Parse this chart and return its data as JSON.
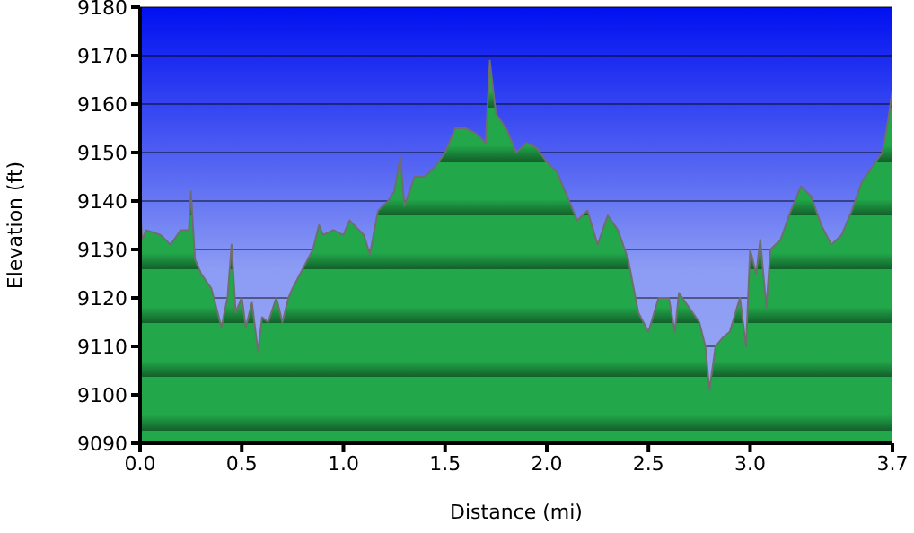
{
  "chart_data": {
    "type": "area",
    "xlabel": "Distance   (mi)",
    "ylabel": "Elevation (ft)",
    "x": [
      0.0,
      0.01,
      0.03,
      0.1,
      0.15,
      0.2,
      0.24,
      0.25,
      0.27,
      0.3,
      0.35,
      0.4,
      0.43,
      0.45,
      0.47,
      0.5,
      0.52,
      0.55,
      0.58,
      0.6,
      0.63,
      0.67,
      0.7,
      0.73,
      0.75,
      0.8,
      0.85,
      0.88,
      0.9,
      0.95,
      1.0,
      1.03,
      1.1,
      1.13,
      1.17,
      1.22,
      1.25,
      1.28,
      1.3,
      1.35,
      1.4,
      1.45,
      1.5,
      1.55,
      1.6,
      1.65,
      1.7,
      1.72,
      1.75,
      1.8,
      1.85,
      1.9,
      1.95,
      2.0,
      2.05,
      2.1,
      2.15,
      2.2,
      2.25,
      2.3,
      2.35,
      2.4,
      2.45,
      2.5,
      2.55,
      2.6,
      2.63,
      2.65,
      2.7,
      2.75,
      2.78,
      2.8,
      2.83,
      2.87,
      2.9,
      2.95,
      2.98,
      3.0,
      3.03,
      3.05,
      3.08,
      3.1,
      3.15,
      3.2,
      3.25,
      3.3,
      3.35,
      3.4,
      3.45,
      3.5,
      3.55,
      3.6,
      3.65,
      3.68,
      3.7
    ],
    "series": [
      {
        "color": "#22a84a",
        "values": [
          9139,
          9132,
          9134,
          9133,
          9131,
          9134,
          9134,
          9142,
          9128,
          9125,
          9122,
          9114,
          9120,
          9131,
          9117,
          9120,
          9114,
          9119,
          9109,
          9116,
          9115,
          9120,
          9115,
          9120,
          9122,
          9126,
          9130,
          9135,
          9133,
          9134,
          9133,
          9136,
          9133,
          9129,
          9138,
          9140,
          9142,
          9149,
          9139,
          9145,
          9145,
          9147,
          9150,
          9155,
          9155,
          9154,
          9152,
          9169,
          9158,
          9155,
          9150,
          9152,
          9151,
          9148,
          9146,
          9141,
          9136,
          9138,
          9131,
          9137,
          9134,
          9128,
          9117,
          9113,
          9120,
          9120,
          9113,
          9121,
          9118,
          9115,
          9110,
          9101,
          9110,
          9112,
          9113,
          9120,
          9110,
          9130,
          9125,
          9132,
          9118,
          9130,
          9132,
          9138,
          9143,
          9141,
          9135,
          9131,
          9133,
          9138,
          9144,
          9147,
          9150,
          9157,
          9163
        ]
      }
    ],
    "xlim": [
      0,
      3.7
    ],
    "xticks": [
      {
        "value": 0,
        "label": "0.0"
      },
      {
        "value": 0.5,
        "label": "0.5"
      },
      {
        "value": 1,
        "label": "1.0"
      },
      {
        "value": 1.5,
        "label": "1.5"
      },
      {
        "value": 2,
        "label": "2.0"
      },
      {
        "value": 2.5,
        "label": "2.5"
      },
      {
        "value": 3,
        "label": "3.0"
      },
      {
        "value": 3.7,
        "label": "3.7"
      }
    ],
    "ylim": [
      9090,
      9180
    ],
    "yticks": [
      9090,
      9100,
      9110,
      9120,
      9130,
      9140,
      9150,
      9160,
      9170,
      9180
    ],
    "grid": "y",
    "legend": false
  }
}
